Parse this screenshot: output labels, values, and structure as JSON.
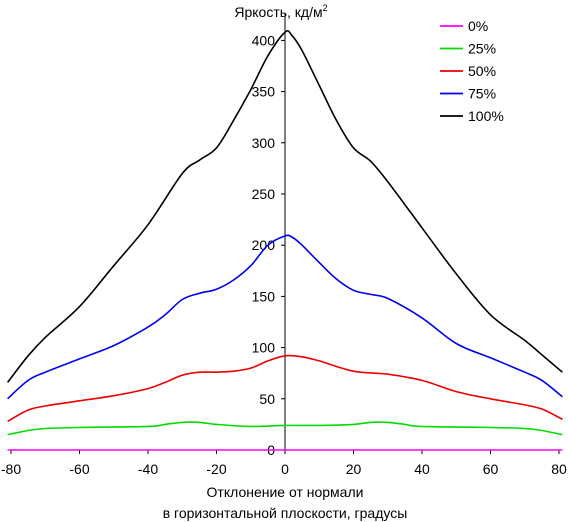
{
  "chart_data": {
    "type": "line",
    "ylabel": "Яркость, кд/м",
    "ylabel_sup": "2",
    "xlabel_line1": "Отклонение от нормали",
    "xlabel_line2": "в горизонтальной плоскости, градусы",
    "xlim": [
      -80,
      80
    ],
    "ylim": [
      0,
      410
    ],
    "xticks": [
      -80,
      -60,
      -40,
      -20,
      0,
      20,
      40,
      60,
      80
    ],
    "yticks": [
      0,
      50,
      100,
      150,
      200,
      250,
      300,
      350,
      400
    ],
    "grid": false,
    "legend_position": "top-right",
    "series": [
      {
        "name": "0%",
        "color": "#ff00ff",
        "x": [
          -81,
          81
        ],
        "y": [
          0,
          0
        ]
      },
      {
        "name": "25%",
        "color": "#00dd00",
        "x": [
          -81,
          -75,
          -70,
          -60,
          -40,
          -35,
          -30,
          -25,
          -20,
          -10,
          0,
          10,
          20,
          25,
          30,
          35,
          40,
          60,
          70,
          75,
          81
        ],
        "y": [
          15,
          19,
          21,
          22,
          23,
          25,
          27,
          27,
          25,
          23,
          24,
          24,
          25,
          27,
          27,
          25,
          23,
          22,
          21,
          19,
          15
        ]
      },
      {
        "name": "50%",
        "color": "#ee0000",
        "x": [
          -81,
          -75,
          -70,
          -60,
          -50,
          -40,
          -35,
          -30,
          -25,
          -20,
          -15,
          -10,
          -5,
          0,
          5,
          10,
          20,
          30,
          40,
          50,
          60,
          70,
          75,
          81
        ],
        "y": [
          28,
          39,
          43,
          48,
          53,
          60,
          66,
          73,
          76,
          76,
          77,
          80,
          87,
          92,
          91,
          87,
          77,
          74,
          68,
          57,
          50,
          44,
          40,
          30
        ]
      },
      {
        "name": "75%",
        "color": "#0000ee",
        "x": [
          -81,
          -75,
          -70,
          -60,
          -50,
          -40,
          -35,
          -30,
          -25,
          -20,
          -15,
          -10,
          -5,
          0,
          2,
          5,
          10,
          15,
          20,
          25,
          30,
          40,
          50,
          60,
          70,
          75,
          81
        ],
        "y": [
          50,
          68,
          76,
          89,
          102,
          120,
          132,
          147,
          153,
          157,
          166,
          180,
          200,
          209,
          208,
          200,
          183,
          167,
          156,
          152,
          148,
          129,
          104,
          90,
          76,
          68,
          52
        ]
      },
      {
        "name": "100%",
        "color": "#000000",
        "x": [
          -81,
          -75,
          -70,
          -60,
          -50,
          -40,
          -30,
          -25,
          -20,
          -15,
          -10,
          -5,
          0,
          2,
          5,
          10,
          15,
          20,
          25,
          30,
          40,
          50,
          60,
          70,
          75,
          81
        ],
        "y": [
          66,
          92,
          110,
          140,
          180,
          220,
          270,
          283,
          295,
          322,
          352,
          385,
          408,
          405,
          390,
          356,
          322,
          295,
          282,
          262,
          217,
          172,
          132,
          107,
          93,
          76
        ]
      }
    ]
  }
}
